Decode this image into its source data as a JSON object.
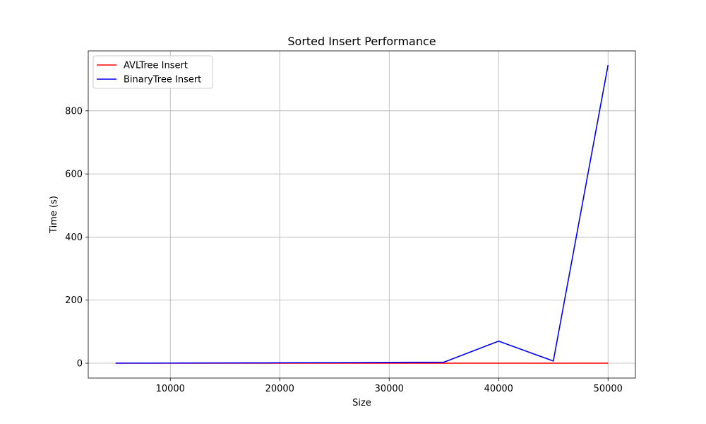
{
  "chart_data": {
    "type": "line",
    "title": "Sorted Insert Performance",
    "xlabel": "Size",
    "ylabel": "Time (s)",
    "xlim": [
      2500,
      52500
    ],
    "ylim": [
      -47,
      990
    ],
    "xticks": [
      10000,
      20000,
      30000,
      40000,
      50000
    ],
    "yticks": [
      0,
      200,
      400,
      600,
      800
    ],
    "grid": true,
    "legend_position": "top-left",
    "x": [
      5000,
      10000,
      15000,
      20000,
      25000,
      30000,
      35000,
      40000,
      45000,
      50000
    ],
    "series": [
      {
        "name": "AVLTree Insert",
        "color": "#ff0000",
        "values": [
          0.02,
          0.04,
          0.06,
          0.08,
          0.1,
          0.12,
          0.14,
          0.16,
          0.18,
          0.2
        ]
      },
      {
        "name": "BinaryTree Insert",
        "color": "#0000ff",
        "values": [
          0.3,
          0.6,
          1.0,
          1.5,
          2.0,
          2.6,
          3.3,
          70,
          7,
          945
        ]
      }
    ]
  }
}
